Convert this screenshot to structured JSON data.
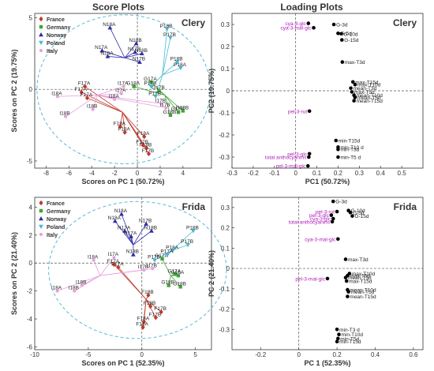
{
  "column_titles": {
    "left": "Score Plots",
    "right": "Loading Plots"
  },
  "legend_colors": {
    "France": "#c0392b",
    "Germany": "#3fa535",
    "Norway": "#2d2da8",
    "Poland": "#48b8d8",
    "Italy": "#e6a0dc"
  },
  "loading_colors": {
    "highlight": "#b01ab8",
    "normal": "#222222",
    "point": "#000000"
  },
  "chart_data": [
    {
      "type": "scatter",
      "title": "Clery",
      "xlabel": "Scores on PC 1 (50.72%)",
      "ylabel": "Scores on PC 2 (19.75%)",
      "xlim": [
        -9,
        6.5
      ],
      "ylim": [
        -5.5,
        5.3
      ],
      "xticks": [
        -8,
        -6,
        -4,
        -2,
        0,
        2,
        4
      ],
      "yticks": [
        -5,
        0,
        5
      ],
      "legend": [
        "France",
        "Germany",
        "Norway",
        "Poland",
        "Italy"
      ],
      "ellipse": {
        "cx": -1.2,
        "cy": 0,
        "rx": 7.6,
        "ry": 5.2
      },
      "groups": [
        {
          "name": "France",
          "centroid": [
            -1.3,
            -1.6
          ],
          "points": [
            {
              "x": -4.9,
              "y": -0.2,
              "label": "F17A"
            },
            {
              "x": -4.6,
              "y": 0.2,
              "label": "F17A"
            },
            {
              "x": -4.4,
              "y": -0.6,
              "label": "F17A"
            },
            {
              "x": -1.5,
              "y": -2.6,
              "label": "F18A"
            },
            {
              "x": -1.1,
              "y": -3.0,
              "label": "F18A"
            },
            {
              "x": 0.6,
              "y": -3.3,
              "label": "F18A"
            },
            {
              "x": 0.8,
              "y": -4.1,
              "label": "F18B"
            },
            {
              "x": 1.0,
              "y": -4.5,
              "label": "F17B"
            },
            {
              "x": 0.5,
              "y": -3.9,
              "label": "F17B"
            }
          ]
        },
        {
          "name": "Germany",
          "centroid": [
            2.4,
            -0.4
          ],
          "points": [
            {
              "x": -0.3,
              "y": 0.2,
              "label": "G18A"
            },
            {
              "x": 1.2,
              "y": 0.5,
              "label": "G17A"
            },
            {
              "x": 1.9,
              "y": -0.1,
              "label": "G17B"
            },
            {
              "x": 2.9,
              "y": -1.8,
              "label": "G18B"
            },
            {
              "x": 3.6,
              "y": -1.6,
              "label": "G17B"
            },
            {
              "x": 4.0,
              "y": -1.5,
              "label": "G18B"
            }
          ]
        },
        {
          "name": "Norway",
          "centroid": [
            -1.1,
            2.2
          ],
          "points": [
            {
              "x": -2.4,
              "y": 4.3,
              "label": "N18A"
            },
            {
              "x": -3.1,
              "y": 2.7,
              "label": "N17A"
            },
            {
              "x": -2.6,
              "y": 2.3,
              "label": "N18A"
            },
            {
              "x": -0.1,
              "y": 3.2,
              "label": "N18B"
            },
            {
              "x": -0.2,
              "y": 2.6,
              "label": "N17B"
            },
            {
              "x": 0.4,
              "y": 2.5,
              "label": "N18B"
            },
            {
              "x": 0.2,
              "y": 1.9,
              "label": "N17B"
            }
          ]
        },
        {
          "name": "Poland",
          "centroid": [
            2.2,
            1.0
          ],
          "points": [
            {
              "x": 2.6,
              "y": 4.2,
              "label": "P18B"
            },
            {
              "x": 2.9,
              "y": 3.6,
              "label": "P17B"
            },
            {
              "x": 3.5,
              "y": 1.9,
              "label": "P18B"
            },
            {
              "x": 3.8,
              "y": 1.5,
              "label": "P18A"
            },
            {
              "x": 1.6,
              "y": -0.5,
              "label": "P17B"
            },
            {
              "x": 1.2,
              "y": 0.2,
              "label": "P17B"
            }
          ]
        },
        {
          "name": "Italy",
          "centroid": [
            -3.5,
            -0.4
          ],
          "points": [
            {
              "x": -7.0,
              "y": -0.5,
              "label": "I18A"
            },
            {
              "x": -6.3,
              "y": -1.9,
              "label": "I18B"
            },
            {
              "x": -3.9,
              "y": -1.4,
              "label": "I18B"
            },
            {
              "x": -2.0,
              "y": -0.7,
              "label": "I18A"
            },
            {
              "x": -1.4,
              "y": -0.3,
              "label": "I17A"
            },
            {
              "x": -1.2,
              "y": 0.2,
              "label": "I17A"
            },
            {
              "x": 2.1,
              "y": -1.0,
              "label": "I17B"
            },
            {
              "x": 2.5,
              "y": -1.3,
              "label": "I17B"
            }
          ]
        }
      ]
    },
    {
      "type": "scatter",
      "title": "Clery",
      "xlabel": "PC1 (50.72%)",
      "ylabel": "PC2 (19.75%)",
      "xlim": [
        -0.3,
        0.6
      ],
      "ylim": [
        -0.35,
        0.35
      ],
      "xticks": [
        -0.3,
        -0.2,
        -0.1,
        0,
        0.1,
        0.2,
        0.3,
        0.4,
        0.5
      ],
      "yticks": [
        -0.3,
        -0.2,
        -0.1,
        0,
        0.1,
        0.2,
        0.3
      ],
      "points": [
        {
          "x": 0.06,
          "y": 0.305,
          "label": "cya-3-glc",
          "highlight": true
        },
        {
          "x": 0.085,
          "y": 0.285,
          "label": "cya-3-mal-glc",
          "highlight": true
        },
        {
          "x": 0.18,
          "y": 0.3,
          "label": "G-3d",
          "highlight": false
        },
        {
          "x": 0.2,
          "y": 0.26,
          "label": "G-5d",
          "highlight": false
        },
        {
          "x": 0.215,
          "y": 0.258,
          "label": "G-10d",
          "highlight": false
        },
        {
          "x": 0.218,
          "y": 0.23,
          "label": "G-15d",
          "highlight": false
        },
        {
          "x": 0.22,
          "y": 0.13,
          "label": "max-T3d",
          "highlight": false
        },
        {
          "x": 0.27,
          "y": 0.04,
          "label": "max-T15d",
          "highlight": false
        },
        {
          "x": 0.28,
          "y": 0.028,
          "label": "max-T10d",
          "highlight": false
        },
        {
          "x": 0.26,
          "y": 0.012,
          "label": "mean-T3d",
          "highlight": false
        },
        {
          "x": 0.265,
          "y": -0.005,
          "label": "max-T5d",
          "highlight": false
        },
        {
          "x": 0.275,
          "y": -0.02,
          "label": "mean-T10d",
          "highlight": false
        },
        {
          "x": 0.28,
          "y": -0.03,
          "label": "mean-T5d",
          "highlight": false
        },
        {
          "x": 0.275,
          "y": -0.045,
          "label": "mean-T15d",
          "highlight": false
        },
        {
          "x": 0.065,
          "y": -0.092,
          "label": "pel-3-rut",
          "highlight": true
        },
        {
          "x": 0.19,
          "y": -0.225,
          "label": "min-T15d",
          "highlight": false
        },
        {
          "x": 0.2,
          "y": -0.255,
          "label": "min-T10 d",
          "highlight": false
        },
        {
          "x": 0.2,
          "y": -0.265,
          "label": "min-T3d",
          "highlight": false
        },
        {
          "x": 0.065,
          "y": -0.285,
          "label": "pel-3-glc",
          "highlight": true
        },
        {
          "x": 0.062,
          "y": -0.3,
          "label": "total anthocyanins",
          "highlight": true
        },
        {
          "x": 0.2,
          "y": -0.3,
          "label": "min-T5 d",
          "highlight": false
        },
        {
          "x": 0.058,
          "y": -0.34,
          "label": "pel-3-mal-glc",
          "highlight": true
        }
      ]
    },
    {
      "type": "scatter",
      "title": "Frida",
      "xlabel": "Scores on PC 1 (52.35%)",
      "ylabel": "Scores on PC 2 (21.40%)",
      "xlim": [
        -10,
        6.5
      ],
      "ylim": [
        -6.2,
        4.7
      ],
      "xticks": [
        -10,
        -5,
        0,
        5
      ],
      "yticks": [
        -6,
        -4,
        -2,
        0,
        2,
        4
      ],
      "legend": [
        "France",
        "Germany",
        "Norway",
        "Poland",
        "Italy"
      ],
      "ellipse": {
        "cx": -0.4,
        "cy": -0.5,
        "rx": 8.3,
        "ry": 4.9
      },
      "groups": [
        {
          "name": "France",
          "centroid": [
            0.4,
            -2.6
          ],
          "points": [
            {
              "x": -2.6,
              "y": -0.1,
              "label": "F17A"
            },
            {
              "x": -2.2,
              "y": -0.3,
              "label": "F17A"
            },
            {
              "x": 0.6,
              "y": -2.3,
              "label": "F18B"
            },
            {
              "x": 0.8,
              "y": -3.1,
              "label": "F18B"
            },
            {
              "x": 0.2,
              "y": -4.2,
              "label": "F18A"
            },
            {
              "x": 0.1,
              "y": -4.6,
              "label": "F18A"
            },
            {
              "x": 1.3,
              "y": -3.9,
              "label": "F17B"
            },
            {
              "x": 1.8,
              "y": -3.5,
              "label": "F17B"
            }
          ]
        },
        {
          "name": "Germany",
          "centroid": [
            2.7,
            -0.9
          ],
          "points": [
            {
              "x": 1.9,
              "y": 0.3,
              "label": "G17A"
            },
            {
              "x": 3.1,
              "y": -0.8,
              "label": "G17A"
            },
            {
              "x": 3.4,
              "y": -0.9,
              "label": "G18A"
            },
            {
              "x": 2.5,
              "y": -1.6,
              "label": "G18B"
            },
            {
              "x": 3.6,
              "y": -1.7,
              "label": "G18B"
            }
          ]
        },
        {
          "name": "Norway",
          "centroid": [
            -0.8,
            1.3
          ],
          "points": [
            {
              "x": -1.9,
              "y": 3.5,
              "label": "N18A"
            },
            {
              "x": -2.5,
              "y": 3.0,
              "label": "N18A"
            },
            {
              "x": -1.6,
              "y": 2.3,
              "label": "N17A"
            },
            {
              "x": -1.0,
              "y": 1.9,
              "label": "N17A"
            },
            {
              "x": 0.4,
              "y": 2.8,
              "label": "N17B"
            },
            {
              "x": 0.9,
              "y": 2.3,
              "label": "N18B"
            },
            {
              "x": -0.8,
              "y": 0.6,
              "label": "N18B"
            }
          ]
        },
        {
          "name": "Poland",
          "centroid": [
            2.8,
            0.9
          ],
          "points": [
            {
              "x": 4.8,
              "y": 2.3,
              "label": "P18B"
            },
            {
              "x": 4.3,
              "y": 1.3,
              "label": "P17B"
            },
            {
              "x": 2.9,
              "y": 0.9,
              "label": "P18A"
            },
            {
              "x": 2.4,
              "y": 0.6,
              "label": "P17A"
            },
            {
              "x": 1.2,
              "y": 0.2,
              "label": "P17B"
            }
          ]
        },
        {
          "name": "Italy",
          "centroid": [
            -3.9,
            -0.9
          ],
          "points": [
            {
              "x": -7.9,
              "y": -2.0,
              "label": "I18A"
            },
            {
              "x": -6.3,
              "y": -2.0,
              "label": "I18B"
            },
            {
              "x": -5.6,
              "y": -1.6,
              "label": "I18B"
            },
            {
              "x": -4.5,
              "y": 0.2,
              "label": "I18A"
            },
            {
              "x": -2.6,
              "y": 0.4,
              "label": "I17A"
            },
            {
              "x": 0.2,
              "y": -0.5,
              "label": "I17B"
            },
            {
              "x": 1.0,
              "y": -0.4,
              "label": "I17B"
            }
          ]
        }
      ]
    },
    {
      "type": "scatter",
      "title": "Frida",
      "xlabel": "PC 1 (52.35%)",
      "ylabel": "PC 2 (21.40%)",
      "xlim": [
        -0.35,
        0.65
      ],
      "ylim": [
        -0.4,
        0.35
      ],
      "xticks": [
        -0.2,
        0,
        0.2,
        0.4,
        0.6
      ],
      "yticks": [
        -0.3,
        -0.2,
        -0.1,
        0,
        0.1,
        0.2,
        0.3
      ],
      "points": [
        {
          "x": 0.18,
          "y": 0.33,
          "label": "G-3d",
          "highlight": false
        },
        {
          "x": 0.26,
          "y": 0.285,
          "label": "G-10d",
          "highlight": false
        },
        {
          "x": 0.2,
          "y": 0.28,
          "label": "pel-3-rut",
          "highlight": true
        },
        {
          "x": 0.27,
          "y": 0.275,
          "label": "G-5d",
          "highlight": false
        },
        {
          "x": 0.17,
          "y": 0.262,
          "label": "pel-3-glc",
          "highlight": true
        },
        {
          "x": 0.28,
          "y": 0.258,
          "label": "G-15d",
          "highlight": false
        },
        {
          "x": 0.18,
          "y": 0.245,
          "label": "cya-3-glc",
          "highlight": true
        },
        {
          "x": 0.175,
          "y": 0.23,
          "label": "total anthocyanins",
          "highlight": true
        },
        {
          "x": 0.205,
          "y": 0.145,
          "label": "cya-3-mal-glc",
          "highlight": true
        },
        {
          "x": 0.245,
          "y": 0.045,
          "label": "max-T3d",
          "highlight": false
        },
        {
          "x": 0.265,
          "y": -0.025,
          "label": "max-T10d",
          "highlight": false
        },
        {
          "x": 0.255,
          "y": -0.035,
          "label": "max-T5d",
          "highlight": false
        },
        {
          "x": 0.245,
          "y": -0.045,
          "label": "mean-T3d",
          "highlight": false
        },
        {
          "x": 0.15,
          "y": -0.05,
          "label": "pel-3-mal-glc",
          "highlight": true
        },
        {
          "x": 0.25,
          "y": -0.062,
          "label": "max-T15d",
          "highlight": false
        },
        {
          "x": 0.255,
          "y": -0.105,
          "label": "mean-T10d",
          "highlight": false
        },
        {
          "x": 0.26,
          "y": -0.115,
          "label": "mean-T5d",
          "highlight": false
        },
        {
          "x": 0.255,
          "y": -0.138,
          "label": "mean-T15d",
          "highlight": false
        },
        {
          "x": 0.2,
          "y": -0.3,
          "label": "min-T3 d",
          "highlight": false
        },
        {
          "x": 0.21,
          "y": -0.325,
          "label": "min-T10d",
          "highlight": false
        },
        {
          "x": 0.205,
          "y": -0.345,
          "label": "min-T5d",
          "highlight": false
        },
        {
          "x": 0.2,
          "y": -0.36,
          "label": "min-T15d",
          "highlight": false
        }
      ]
    }
  ]
}
